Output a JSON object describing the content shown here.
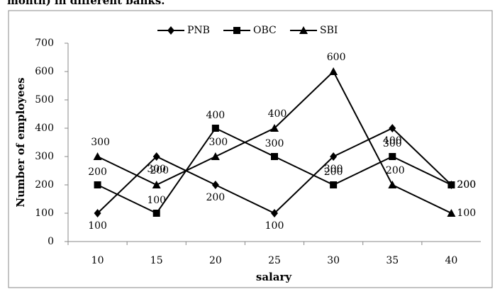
{
  "chart_data": {
    "type": "line",
    "title": "month) in different banks.",
    "x_label": "salary",
    "y_label": "Number of employees",
    "categories": [
      "10",
      "15",
      "20",
      "25",
      "30",
      "35",
      "40"
    ],
    "series": [
      {
        "name": "PNB",
        "color": "#000000",
        "marker": "diamond",
        "values": [
          100,
          300,
          200,
          100,
          300,
          400,
          200
        ]
      },
      {
        "name": "OBC",
        "color": "#000000",
        "marker": "square",
        "values": [
          200,
          100,
          400,
          300,
          200,
          300,
          200
        ]
      },
      {
        "name": "SBI",
        "color": "#000000",
        "marker": "triangle",
        "values": [
          300,
          200,
          300,
          400,
          600,
          200,
          100
        ]
      }
    ],
    "ylim": [
      0,
      700
    ],
    "yticks": [
      0,
      100,
      200,
      300,
      400,
      500,
      600,
      700
    ],
    "grid": false,
    "legend": "top",
    "data_labels": true
  }
}
